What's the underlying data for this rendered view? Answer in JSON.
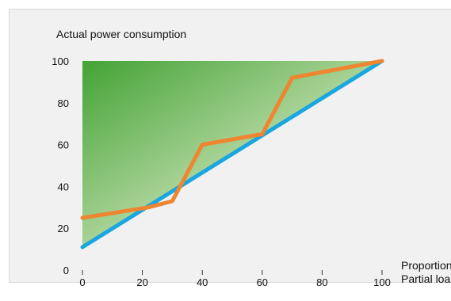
{
  "chart_data": {
    "type": "line",
    "title": "",
    "ylabel": "Actual power consumption",
    "xlabel_lines": [
      "Proportion",
      "Partial loa"
    ],
    "xlim": [
      0,
      100
    ],
    "ylim": [
      0,
      100
    ],
    "x_ticks": [
      0,
      20,
      40,
      60,
      80,
      100
    ],
    "y_ticks": [
      0,
      20,
      40,
      60,
      80,
      100
    ],
    "grid": false,
    "series": [
      {
        "color": "#1aa6e0",
        "x": [
          0,
          100
        ],
        "y": [
          11,
          100
        ]
      },
      {
        "color": "#ee8530",
        "x": [
          0,
          22,
          30,
          40,
          60,
          70,
          100
        ],
        "y": [
          25,
          30,
          33,
          60,
          65,
          92,
          100
        ]
      }
    ],
    "fill": {
      "between": "line to top",
      "colors": [
        "#4aa83c",
        "#cfe6c6"
      ]
    }
  }
}
